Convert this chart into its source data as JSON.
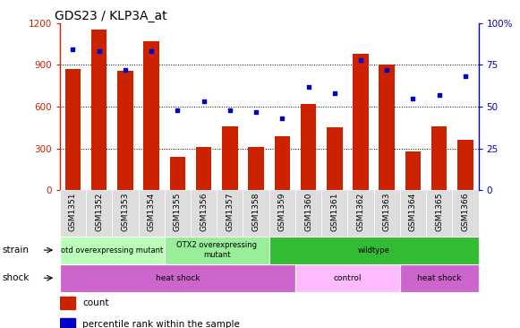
{
  "title": "GDS23 / KLP3A_at",
  "samples": [
    "GSM1351",
    "GSM1352",
    "GSM1353",
    "GSM1354",
    "GSM1355",
    "GSM1356",
    "GSM1357",
    "GSM1358",
    "GSM1359",
    "GSM1360",
    "GSM1361",
    "GSM1362",
    "GSM1363",
    "GSM1364",
    "GSM1365",
    "GSM1366"
  ],
  "counts": [
    870,
    1150,
    860,
    1070,
    240,
    310,
    460,
    310,
    390,
    620,
    450,
    980,
    900,
    280,
    460,
    360
  ],
  "percentiles": [
    84,
    83,
    72,
    83,
    48,
    53,
    48,
    47,
    43,
    62,
    58,
    78,
    72,
    55,
    57,
    68
  ],
  "ylim_left": [
    0,
    1200
  ],
  "ylim_right": [
    0,
    100
  ],
  "yticks_left": [
    0,
    300,
    600,
    900,
    1200
  ],
  "yticks_right": [
    0,
    25,
    50,
    75,
    100
  ],
  "bar_color": "#cc2200",
  "dot_color": "#0000cc",
  "strain_labels": [
    {
      "text": "otd overexpressing mutant",
      "start": 0,
      "end": 4,
      "color": "#bbffbb"
    },
    {
      "text": "OTX2 overexpressing\nmutant",
      "start": 4,
      "end": 8,
      "color": "#99ee99"
    },
    {
      "text": "wildtype",
      "start": 8,
      "end": 16,
      "color": "#33bb33"
    }
  ],
  "shock_labels": [
    {
      "text": "heat shock",
      "start": 0,
      "end": 9,
      "color": "#cc66cc"
    },
    {
      "text": "control",
      "start": 9,
      "end": 13,
      "color": "#ffbbff"
    },
    {
      "text": "heat shock",
      "start": 13,
      "end": 16,
      "color": "#cc66cc"
    }
  ],
  "legend_count_color": "#cc2200",
  "legend_dot_color": "#0000cc",
  "legend_count_label": "count",
  "legend_dot_label": "percentile rank within the sample"
}
